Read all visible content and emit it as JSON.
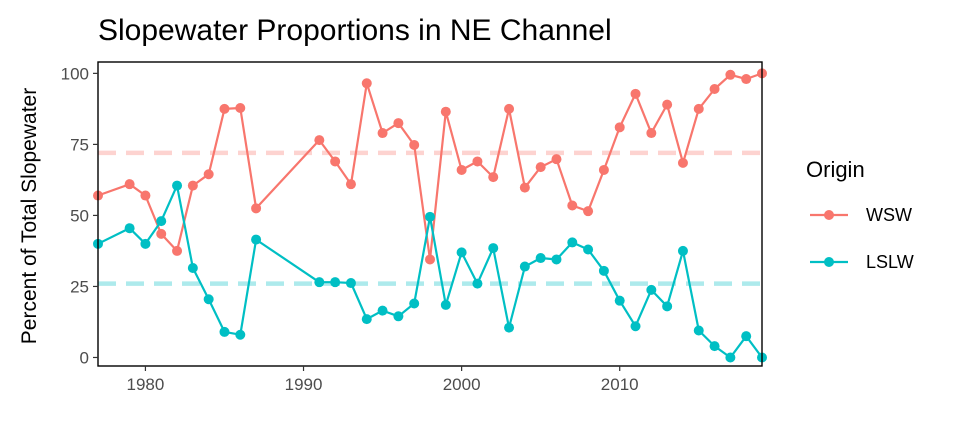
{
  "chart_data": {
    "type": "line",
    "title": "Slopewater Proportions in NE Channel",
    "xlabel": "",
    "ylabel": "Percent of Total Slopewater",
    "xlim": [
      1977,
      2019
    ],
    "ylim": [
      -3,
      104
    ],
    "x_ticks": [
      1980,
      1990,
      2000,
      2010
    ],
    "y_ticks": [
      0,
      25,
      50,
      75,
      100
    ],
    "grid": false,
    "legend": {
      "title": "Origin",
      "placement": "right"
    },
    "reference_lines": [
      {
        "series": "WSW",
        "y": 72
      },
      {
        "series": "LSLW",
        "y": 26
      }
    ],
    "series": [
      {
        "name": "WSW",
        "color": "#F8766D",
        "points": [
          [
            1977,
            57
          ],
          [
            1979,
            61
          ],
          [
            1980,
            57
          ],
          [
            1981,
            43.5
          ],
          [
            1982,
            37.5
          ],
          [
            1983,
            60.5
          ],
          [
            1984,
            64.5
          ],
          [
            1985,
            87.5
          ],
          [
            1986,
            87.8
          ],
          [
            1987,
            52.5
          ],
          [
            1991,
            76.5
          ],
          [
            1992,
            69
          ],
          [
            1993,
            61
          ],
          [
            1994,
            96.5
          ],
          [
            1995,
            79
          ],
          [
            1996,
            82.5
          ],
          [
            1997,
            74.8
          ],
          [
            1998,
            34.5
          ],
          [
            1999,
            86.5
          ],
          [
            2000,
            66
          ],
          [
            2001,
            69
          ],
          [
            2002,
            63.5
          ],
          [
            2003,
            87.5
          ],
          [
            2004,
            59.8
          ],
          [
            2005,
            67
          ],
          [
            2006,
            69.8
          ],
          [
            2007,
            53.5
          ],
          [
            2008,
            51.5
          ],
          [
            2009,
            66
          ],
          [
            2010,
            81
          ],
          [
            2011,
            92.8
          ],
          [
            2012,
            79
          ],
          [
            2013,
            89
          ],
          [
            2014,
            68.5
          ],
          [
            2015,
            87.5
          ],
          [
            2016,
            94.5
          ],
          [
            2017,
            99.5
          ],
          [
            2018,
            98
          ],
          [
            2019,
            100
          ]
        ]
      },
      {
        "name": "LSLW",
        "color": "#00BFC4",
        "points": [
          [
            1977,
            40
          ],
          [
            1979,
            45.5
          ],
          [
            1980,
            40
          ],
          [
            1981,
            48
          ],
          [
            1982,
            60.5
          ],
          [
            1983,
            31.5
          ],
          [
            1984,
            20.5
          ],
          [
            1985,
            9
          ],
          [
            1986,
            8
          ],
          [
            1987,
            41.5
          ],
          [
            1991,
            26.5
          ],
          [
            1992,
            26.5
          ],
          [
            1993,
            26.2
          ],
          [
            1994,
            13.5
          ],
          [
            1995,
            16.5
          ],
          [
            1996,
            14.5
          ],
          [
            1997,
            19
          ],
          [
            1998,
            49.5
          ],
          [
            1999,
            18.5
          ],
          [
            2000,
            37
          ],
          [
            2001,
            26
          ],
          [
            2002,
            38.5
          ],
          [
            2003,
            10.5
          ],
          [
            2004,
            32
          ],
          [
            2005,
            35
          ],
          [
            2006,
            34.5
          ],
          [
            2007,
            40.5
          ],
          [
            2008,
            38
          ],
          [
            2009,
            30.5
          ],
          [
            2010,
            20
          ],
          [
            2011,
            11
          ],
          [
            2012,
            23.8
          ],
          [
            2013,
            18
          ],
          [
            2014,
            37.5
          ],
          [
            2015,
            9.5
          ],
          [
            2016,
            4
          ],
          [
            2017,
            0
          ],
          [
            2018,
            7.5
          ],
          [
            2019,
            0
          ]
        ]
      }
    ]
  }
}
